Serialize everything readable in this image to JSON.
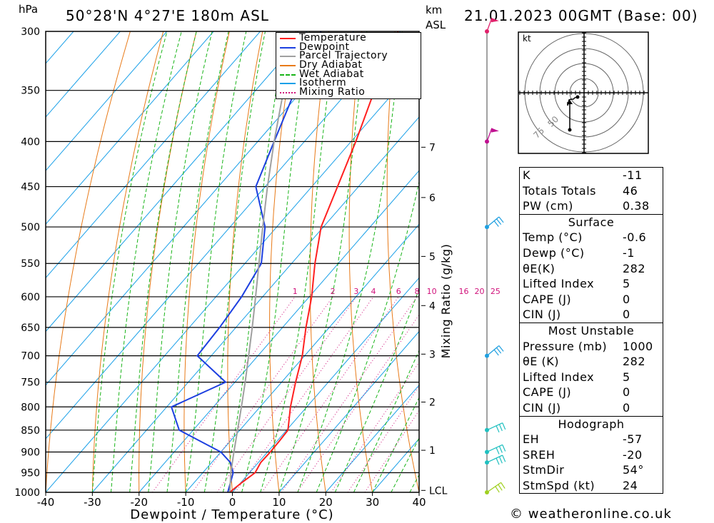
{
  "header": {
    "pressure_unit": "hPa",
    "location": "50°28'N  4°27'E  180m  ASL",
    "km_label": "km",
    "asl_label": "ASL",
    "datetime": "21.01.2023  00GMT  (Base: 00)"
  },
  "legend": [
    {
      "name": "Temperature",
      "color": "#ff2020",
      "style": "solid"
    },
    {
      "name": "Dewpoint",
      "color": "#1c3fe0",
      "style": "solid"
    },
    {
      "name": "Parcel Trajectory",
      "color": "#a0a0a0",
      "style": "solid"
    },
    {
      "name": "Dry Adiabat",
      "color": "#e87a18",
      "style": "solid"
    },
    {
      "name": "Wet Adiabat",
      "color": "#18b418",
      "style": "dashed"
    },
    {
      "name": "Isotherm",
      "color": "#1aa0e8",
      "style": "solid"
    },
    {
      "name": "Mixing Ratio",
      "color": "#d0107a",
      "style": "dotted"
    }
  ],
  "chart_data": {
    "type": "line",
    "subtype": "skew-t log-p diagram",
    "xlabel": "Dewpoint / Temperature (°C)",
    "ylabel_left": "hPa",
    "ylabel_right": "Mixing Ratio (g/kg)",
    "x_ticks": [
      -40,
      -30,
      -20,
      -10,
      0,
      10,
      20,
      30,
      40
    ],
    "pressure_levels": [
      300,
      350,
      400,
      450,
      500,
      550,
      600,
      650,
      700,
      750,
      800,
      850,
      900,
      950,
      1000
    ],
    "km_ticks": [
      {
        "label": "7",
        "p": 406
      },
      {
        "label": "6",
        "p": 463
      },
      {
        "label": "5",
        "p": 540
      },
      {
        "label": "4",
        "p": 614
      },
      {
        "label": "3",
        "p": 697
      },
      {
        "label": "2",
        "p": 790
      },
      {
        "label": "1",
        "p": 896
      },
      {
        "label": "LCL",
        "p": 995
      }
    ],
    "mixing_ratio_labels": [
      "1",
      "2",
      "3",
      "4",
      "6",
      "8",
      "10",
      "16",
      "20",
      "25"
    ],
    "mixing_ratio_values": [
      1,
      2,
      3,
      4,
      6,
      8,
      10,
      16,
      20,
      25
    ],
    "series": [
      {
        "name": "Temperature",
        "color": "#ff2020",
        "points": [
          [
            1000,
            -0.6
          ],
          [
            975,
            0.2
          ],
          [
            950,
            1.2
          ],
          [
            925,
            0.5
          ],
          [
            900,
            0.6
          ],
          [
            875,
            0.5
          ],
          [
            850,
            0.3
          ],
          [
            800,
            -3.5
          ],
          [
            750,
            -7.0
          ],
          [
            700,
            -10.5
          ],
          [
            650,
            -15.0
          ],
          [
            600,
            -19.5
          ],
          [
            550,
            -25.0
          ],
          [
            500,
            -30.5
          ],
          [
            450,
            -34.5
          ],
          [
            400,
            -39.0
          ],
          [
            350,
            -44.5
          ],
          [
            300,
            -50.5
          ]
        ]
      },
      {
        "name": "Dewpoint",
        "color": "#1c3fe0",
        "points": [
          [
            1000,
            -1.0
          ],
          [
            950,
            -3.5
          ],
          [
            925,
            -6.0
          ],
          [
            900,
            -10.0
          ],
          [
            850,
            -23.0
          ],
          [
            800,
            -29.0
          ],
          [
            750,
            -22.0
          ],
          [
            700,
            -33.0
          ],
          [
            650,
            -33.5
          ],
          [
            600,
            -34.5
          ],
          [
            550,
            -36.5
          ],
          [
            500,
            -42.5
          ],
          [
            450,
            -52.0
          ],
          [
            400,
            -56.5
          ],
          [
            350,
            -61.5
          ],
          [
            300,
            -67.0
          ]
        ]
      },
      {
        "name": "Parcel Trajectory",
        "color": "#a0a0a0",
        "points": [
          [
            1000,
            -0.6
          ],
          [
            995,
            -0.9
          ],
          [
            950,
            -4.0
          ],
          [
            900,
            -7.2
          ],
          [
            850,
            -10.5
          ],
          [
            800,
            -14.0
          ],
          [
            750,
            -17.8
          ],
          [
            700,
            -22.0
          ],
          [
            650,
            -26.5
          ],
          [
            600,
            -31.5
          ],
          [
            550,
            -37.0
          ],
          [
            500,
            -43.0
          ],
          [
            450,
            -49.5
          ],
          [
            400,
            -56.5
          ],
          [
            350,
            -64.0
          ],
          [
            300,
            -72.0
          ]
        ]
      }
    ],
    "wind_barbs": [
      {
        "p": 300,
        "color": "#e0206a"
      },
      {
        "p": 400,
        "color": "#c01090"
      },
      {
        "p": 500,
        "color": "#20a0e0"
      },
      {
        "p": 700,
        "color": "#20a0e0"
      },
      {
        "p": 850,
        "color": "#20c0c0"
      },
      {
        "p": 900,
        "color": "#20c0c0"
      },
      {
        "p": 925,
        "color": "#20c0c0"
      },
      {
        "p": 1000,
        "color": "#a0d020"
      }
    ]
  },
  "hodograph": {
    "unit": "kt",
    "ring_labels": [
      "75",
      "50"
    ]
  },
  "indices": {
    "k": {
      "label": "K",
      "value": "-11"
    },
    "tt": {
      "label": "Totals Totals",
      "value": "46"
    },
    "pw": {
      "label": "PW (cm)",
      "value": "0.38"
    },
    "surface": {
      "title": "Surface",
      "temp": {
        "label": "Temp (°C)",
        "value": "-0.6"
      },
      "dewp": {
        "label": "Dewp (°C)",
        "value": "-1"
      },
      "thetae": {
        "label": "θE(K)",
        "value": "282"
      },
      "li": {
        "label": "Lifted Index",
        "value": "5"
      },
      "cape": {
        "label": "CAPE (J)",
        "value": "0"
      },
      "cin": {
        "label": "CIN (J)",
        "value": "0"
      }
    },
    "mu": {
      "title": "Most Unstable",
      "pressure": {
        "label": "Pressure (mb)",
        "value": "1000"
      },
      "thetae": {
        "label": "θE (K)",
        "value": "282"
      },
      "li": {
        "label": "Lifted Index",
        "value": "5"
      },
      "cape": {
        "label": "CAPE (J)",
        "value": "0"
      },
      "cin": {
        "label": "CIN (J)",
        "value": "0"
      }
    },
    "hodo": {
      "title": "Hodograph",
      "eh": {
        "label": "EH",
        "value": "-57"
      },
      "sreh": {
        "label": "SREH",
        "value": "-20"
      },
      "stmdir": {
        "label": "StmDir",
        "value": "54°"
      },
      "stmspd": {
        "label": "StmSpd (kt)",
        "value": "24"
      }
    }
  },
  "footer": {
    "copyright": "© weatheronline.co.uk"
  }
}
